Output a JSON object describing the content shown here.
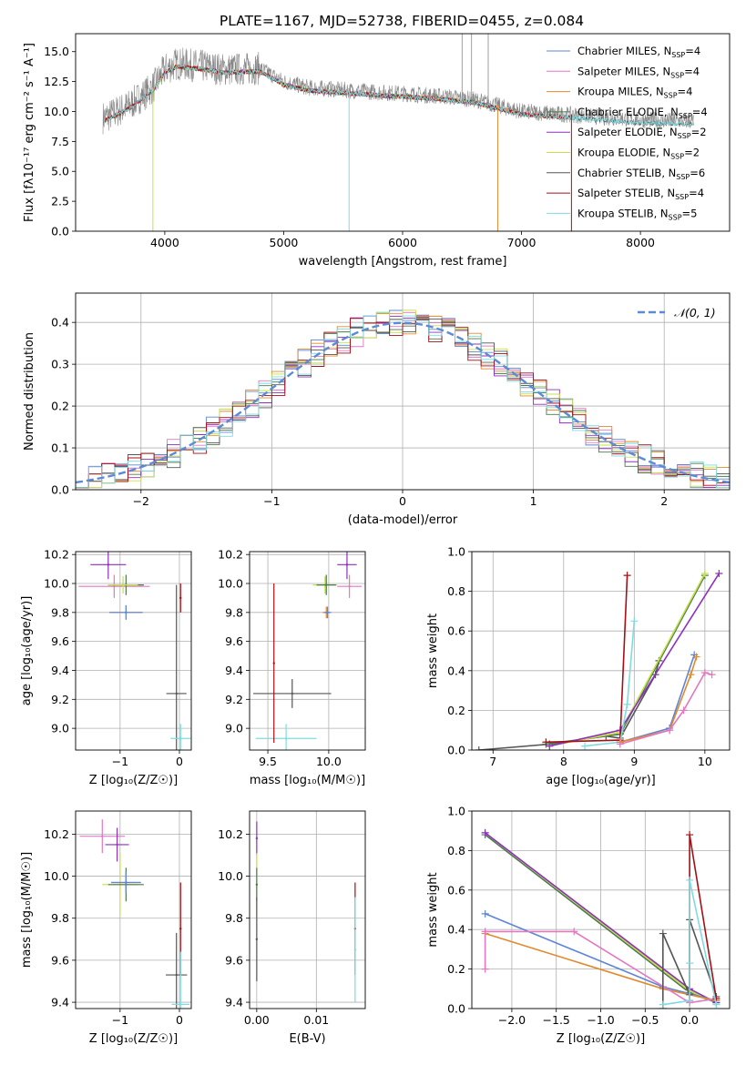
{
  "figure_title": "PLATE=1167, MJD=52738, FIBERID=0455, z=0.084",
  "series_colors": {
    "chabrier_miles": "#5c85d6",
    "salpeter_miles": "#e377c2",
    "kroupa_miles": "#e08a2e",
    "chabrier_elodie": "#4a7a4a",
    "salpeter_elodie": "#8f2fbf",
    "kroupa_elodie": "#c6e048",
    "chabrier_stelib": "#555555",
    "salpeter_stelib": "#a50f15",
    "kroupa_stelib": "#7fdbe0",
    "data": "#888888",
    "gaussian": "#5b8bd6"
  },
  "chart_data": [
    {
      "id": "spectrum",
      "type": "line",
      "xlabel": "wavelength [Angstrom, rest frame]",
      "ylabel": "Flux [fλ10⁻¹⁷ erg cm⁻² s⁻¹ A⁻¹]",
      "xlim": [
        3250,
        8750
      ],
      "ylim": [
        0,
        16.5
      ],
      "xticks": [
        4000,
        5000,
        6000,
        7000,
        8000
      ],
      "yticks": [
        0.0,
        2.5,
        5.0,
        7.5,
        10.0,
        12.5,
        15.0
      ],
      "grid": false,
      "legend_position": "top-right",
      "legend": [
        {
          "key": "chabrier_miles",
          "label": "Chabrier MILES, N",
          "sub": "SSP",
          "tail": "=4"
        },
        {
          "key": "salpeter_miles",
          "label": "Salpeter MILES, N",
          "sub": "SSP",
          "tail": "=4"
        },
        {
          "key": "kroupa_miles",
          "label": "Kroupa MILES, N",
          "sub": "SSP",
          "tail": "=4"
        },
        {
          "key": "chabrier_elodie",
          "label": "Chabrier ELODIE, N",
          "sub": "SSP",
          "tail": "=4"
        },
        {
          "key": "salpeter_elodie",
          "label": "Salpeter ELODIE, N",
          "sub": "SSP",
          "tail": "=2"
        },
        {
          "key": "kroupa_elodie",
          "label": "Kroupa ELODIE, N",
          "sub": "SSP",
          "tail": "=2"
        },
        {
          "key": "chabrier_stelib",
          "label": "Chabrier STELIB, N",
          "sub": "SSP",
          "tail": "=6"
        },
        {
          "key": "salpeter_stelib",
          "label": "Salpeter STELIB, N",
          "sub": "SSP",
          "tail": "=4"
        },
        {
          "key": "kroupa_stelib",
          "label": "Kroupa STELIB, N",
          "sub": "SSP",
          "tail": "=5"
        }
      ],
      "data_envelope": {
        "wavelength": [
          3500,
          3700,
          3900,
          4000,
          4100,
          4300,
          4500,
          4800,
          5000,
          5200,
          5500,
          5800,
          6000,
          6300,
          6600,
          6800,
          7000,
          7300,
          7600,
          8000,
          8400
        ],
        "flux": [
          9.5,
          10.5,
          12.0,
          13.5,
          14.0,
          13.8,
          13.5,
          13.6,
          12.5,
          12.0,
          11.8,
          11.6,
          11.5,
          11.3,
          11.0,
          10.5,
          10.0,
          9.8,
          9.6,
          9.3,
          9.2
        ]
      }
    },
    {
      "id": "residuals",
      "type": "line",
      "xlabel": "(data-model)/error",
      "ylabel": "Normed distribution",
      "xlim": [
        -2.5,
        2.5
      ],
      "ylim": [
        0,
        0.47
      ],
      "xticks": [
        -2,
        -1,
        0,
        1,
        2
      ],
      "yticks": [
        0.0,
        0.1,
        0.2,
        0.3,
        0.4
      ],
      "grid": true,
      "legend_position": "top-right",
      "legend_label": "𝒩(0, 1)",
      "bin_width": 0.1,
      "bin_start": -2.5
    },
    {
      "id": "age_vs_Z",
      "type": "scatter",
      "xlabel": "Z [log₁₀(Z/Z☉)]",
      "ylabel": "age  [log₁₀(age/yr)]",
      "xlim": [
        -1.75,
        0.2
      ],
      "ylim": [
        8.85,
        10.22
      ],
      "xticks": [
        -1,
        0
      ],
      "yticks": [
        9.0,
        9.2,
        9.4,
        9.6,
        9.8,
        10.0,
        10.2
      ],
      "grid": true,
      "points": [
        {
          "key": "salpeter_elodie",
          "x": -1.2,
          "y": 10.13,
          "xerr": 0.3,
          "yerr": 0.1
        },
        {
          "key": "salpeter_miles",
          "x": -1.1,
          "y": 9.98,
          "xerr": 0.6,
          "yerr": 0.08
        },
        {
          "key": "chabrier_elodie",
          "x": -0.9,
          "y": 9.99,
          "xerr": 0.3,
          "yerr": 0.07
        },
        {
          "key": "kroupa_elodie",
          "x": -0.95,
          "y": 9.99,
          "xerr": 0.25,
          "yerr": 0.06
        },
        {
          "key": "kroupa_miles",
          "x": -0.9,
          "y": 9.8,
          "xerr": 0.28,
          "yerr": 0.05
        },
        {
          "key": "chabrier_miles",
          "x": -0.9,
          "y": 9.8,
          "xerr": 0.28,
          "yerr": 0.05
        },
        {
          "key": "chabrier_stelib",
          "x": -0.05,
          "y": 9.24,
          "xerr": 0.17,
          "yerr": 0.75
        },
        {
          "key": "kroupa_stelib",
          "x": 0.02,
          "y": 8.93,
          "xerr": 0.17,
          "yerr": 0.1
        },
        {
          "key": "salpeter_stelib",
          "x": 0.02,
          "y": 9.9,
          "xerr": 0.0,
          "yerr": 0.1
        }
      ]
    },
    {
      "id": "age_vs_mass",
      "type": "scatter",
      "xlabel": "mass [log₁₀(M/M☉)]",
      "ylabel": "",
      "xlim": [
        9.35,
        10.3
      ],
      "ylim": [
        8.85,
        10.22
      ],
      "xticks": [
        9.5,
        10.0
      ],
      "yticks": [
        9.0,
        9.2,
        9.4,
        9.6,
        9.8,
        10.0,
        10.2
      ],
      "grid": true,
      "points": [
        {
          "key": "salpeter_elodie",
          "x": 10.15,
          "y": 10.13,
          "xerr": 0.08,
          "yerr": 0.1
        },
        {
          "key": "salpeter_miles",
          "x": 10.17,
          "y": 9.98,
          "xerr": 0.1,
          "yerr": 0.08
        },
        {
          "key": "kroupa_elodie",
          "x": 9.97,
          "y": 9.99,
          "xerr": 0.1,
          "yerr": 0.06
        },
        {
          "key": "chabrier_elodie",
          "x": 9.98,
          "y": 9.99,
          "xerr": 0.08,
          "yerr": 0.07
        },
        {
          "key": "kroupa_miles",
          "x": 9.98,
          "y": 9.8,
          "xerr": 0.03,
          "yerr": 0.04
        },
        {
          "key": "chabrier_miles",
          "x": 9.99,
          "y": 9.8,
          "xerr": 0.03,
          "yerr": 0.04
        },
        {
          "key": "chabrier_stelib",
          "x": 9.7,
          "y": 9.24,
          "xerr": 0.32,
          "yerr": 0.1
        },
        {
          "key": "kroupa_stelib",
          "x": 9.65,
          "y": 8.93,
          "xerr": 0.25,
          "yerr": 0.1
        },
        {
          "key": "salpeter_stelib",
          "x": 9.55,
          "y": 9.45,
          "xerr": 0.0,
          "yerr": 0.55
        }
      ]
    },
    {
      "id": "weight_vs_age",
      "type": "line",
      "xlabel": "age  [log₁₀(age/yr)]",
      "ylabel": "mass weight",
      "xlim": [
        6.7,
        10.35
      ],
      "ylim": [
        0,
        1.0
      ],
      "xticks": [
        7,
        8,
        9,
        10
      ],
      "yticks": [
        0.0,
        0.2,
        0.4,
        0.6,
        0.8,
        1.0
      ],
      "grid": true,
      "series": [
        {
          "key": "chabrier_stelib",
          "x": [
            6.8,
            7.8,
            8.6,
            8.8,
            9.3,
            9.35
          ],
          "y": [
            0.0,
            0.03,
            0.07,
            0.06,
            0.38,
            0.45
          ]
        },
        {
          "key": "chabrier_elodie",
          "x": [
            7.75,
            8.8,
            10.0
          ],
          "y": [
            0.03,
            0.08,
            0.88
          ]
        },
        {
          "key": "kroupa_elodie",
          "x": [
            7.8,
            8.8,
            10.0
          ],
          "y": [
            0.02,
            0.09,
            0.89
          ]
        },
        {
          "key": "salpeter_elodie",
          "x": [
            7.8,
            8.8,
            10.2
          ],
          "y": [
            0.02,
            0.1,
            0.89
          ]
        },
        {
          "key": "salpeter_stelib",
          "x": [
            7.75,
            8.8,
            8.9
          ],
          "y": [
            0.04,
            0.05,
            0.88
          ]
        },
        {
          "key": "kroupa_stelib",
          "x": [
            8.3,
            8.8,
            8.9,
            9.0
          ],
          "y": [
            0.02,
            0.04,
            0.23,
            0.65
          ]
        },
        {
          "key": "chabrier_miles",
          "x": [
            8.8,
            9.5,
            9.85
          ],
          "y": [
            0.04,
            0.11,
            0.48
          ]
        },
        {
          "key": "kroupa_miles",
          "x": [
            8.8,
            9.5,
            9.8,
            9.88
          ],
          "y": [
            0.04,
            0.1,
            0.38,
            0.47
          ]
        },
        {
          "key": "salpeter_miles",
          "x": [
            8.8,
            9.5,
            9.7,
            10.0,
            10.1
          ],
          "y": [
            0.03,
            0.1,
            0.2,
            0.39,
            0.38
          ]
        }
      ]
    },
    {
      "id": "mass_vs_Z",
      "type": "scatter",
      "xlabel": "Z [log₁₀(Z/Z☉)]",
      "ylabel": "mass [log₁₀(M/M☉)]",
      "xlim": [
        -1.75,
        0.2
      ],
      "ylim": [
        9.37,
        10.31
      ],
      "xticks": [
        -1,
        0
      ],
      "yticks": [
        9.4,
        9.6,
        9.8,
        10.0,
        10.2
      ],
      "grid": true,
      "points": [
        {
          "key": "salpeter_miles",
          "x": -1.3,
          "y": 10.19,
          "xerr": 0.38,
          "yerr": 0.08
        },
        {
          "key": "salpeter_elodie",
          "x": -1.05,
          "y": 10.15,
          "xerr": 0.2,
          "yerr": 0.08
        },
        {
          "key": "kroupa_elodie",
          "x": -1.0,
          "y": 9.96,
          "xerr": 0.3,
          "yerr": 0.15
        },
        {
          "key": "chabrier_elodie",
          "x": -0.9,
          "y": 9.96,
          "xerr": 0.3,
          "yerr": 0.08
        },
        {
          "key": "kroupa_miles",
          "x": -0.9,
          "y": 9.97,
          "xerr": 0.25,
          "yerr": 0.05
        },
        {
          "key": "chabrier_miles",
          "x": -0.9,
          "y": 9.97,
          "xerr": 0.25,
          "yerr": 0.05
        },
        {
          "key": "chabrier_stelib",
          "x": -0.05,
          "y": 9.53,
          "xerr": 0.18,
          "yerr": 0.2
        },
        {
          "key": "salpeter_stelib",
          "x": 0.02,
          "y": 9.75,
          "xerr": 0.0,
          "yerr": 0.22
        },
        {
          "key": "kroupa_stelib",
          "x": 0.02,
          "y": 9.39,
          "xerr": 0.15,
          "yerr": 0.25
        }
      ]
    },
    {
      "id": "mass_vs_ebv",
      "type": "scatter",
      "xlabel": "E(B-V)",
      "ylabel": "",
      "xlim": [
        -0.0012,
        0.0182
      ],
      "ylim": [
        9.37,
        10.31
      ],
      "xticks": [
        0.0,
        0.01
      ],
      "xticklabels": [
        "0.00",
        "0.01"
      ],
      "yticks": [
        9.4,
        9.6,
        9.8,
        10.0,
        10.2
      ],
      "grid": true,
      "points": [
        {
          "key": "salpeter_elodie",
          "x": 0.0,
          "y": 10.18,
          "xerr": 0,
          "yerr": 0.08
        },
        {
          "key": "kroupa_elodie",
          "x": 0.0,
          "y": 9.96,
          "xerr": 0,
          "yerr": 0.15
        },
        {
          "key": "chabrier_elodie",
          "x": 0.0,
          "y": 9.96,
          "xerr": 0,
          "yerr": 0.08
        },
        {
          "key": "chabrier_stelib",
          "x": 0.0,
          "y": 9.7,
          "xerr": 0,
          "yerr": 0.2
        },
        {
          "key": "salpeter_stelib",
          "x": 0.0165,
          "y": 9.75,
          "xerr": 0,
          "yerr": 0.22
        },
        {
          "key": "kroupa_stelib",
          "x": 0.0165,
          "y": 9.65,
          "xerr": 0,
          "yerr": 0.25
        }
      ]
    },
    {
      "id": "weight_vs_Z",
      "type": "line",
      "xlabel": "Z [log₁₀(Z/Z☉)]",
      "ylabel": "mass weight",
      "xlim": [
        -2.45,
        0.45
      ],
      "ylim": [
        0,
        1.0
      ],
      "xticks": [
        -2.0,
        -1.5,
        -1.0,
        -0.5,
        0.0
      ],
      "yticks": [
        0.0,
        0.2,
        0.4,
        0.6,
        0.8,
        1.0
      ],
      "grid": true,
      "series": [
        {
          "key": "chabrier_elodie",
          "x": [
            -2.3,
            0.0,
            0.3
          ],
          "y": [
            0.88,
            0.08,
            0.03
          ]
        },
        {
          "key": "kroupa_elodie",
          "x": [
            -2.3,
            0.0,
            0.3
          ],
          "y": [
            0.89,
            0.09,
            0.03
          ]
        },
        {
          "key": "salpeter_elodie",
          "x": [
            -2.3,
            0.0,
            0.3
          ],
          "y": [
            0.89,
            0.1,
            0.03
          ]
        },
        {
          "key": "chabrier_miles",
          "x": [
            -2.3,
            -0.3,
            0.3
          ],
          "y": [
            0.48,
            0.11,
            0.04
          ]
        },
        {
          "key": "kroupa_miles",
          "x": [
            -2.3,
            -0.3,
            0.3
          ],
          "y": [
            0.38,
            0.1,
            0.04
          ]
        },
        {
          "key": "salpeter_miles",
          "x": [
            -2.3,
            -2.3,
            -1.3,
            0.0,
            0.3
          ],
          "y": [
            0.2,
            0.39,
            0.39,
            0.03,
            0.05
          ]
        },
        {
          "key": "chabrier_stelib",
          "x": [
            -0.3,
            -0.3,
            0.0,
            0.0,
            0.3
          ],
          "y": [
            0.0,
            0.38,
            0.07,
            0.45,
            0.06
          ]
        },
        {
          "key": "salpeter_stelib",
          "x": [
            0.0,
            0.0,
            0.3
          ],
          "y": [
            0.04,
            0.88,
            0.05
          ]
        },
        {
          "key": "kroupa_stelib",
          "x": [
            -0.3,
            0.0,
            0.0,
            0.0,
            0.3
          ],
          "y": [
            0.02,
            0.04,
            0.23,
            0.65,
            0.02
          ]
        }
      ]
    }
  ]
}
